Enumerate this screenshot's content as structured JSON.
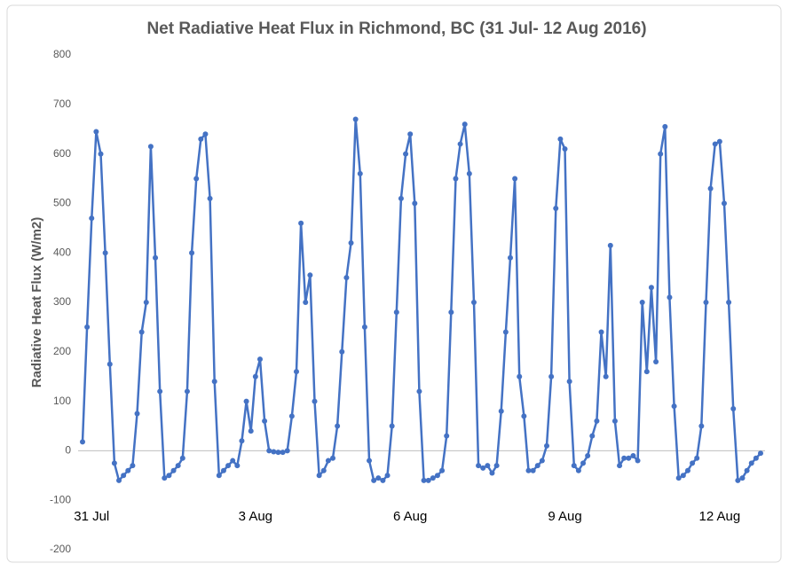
{
  "chart_data": {
    "type": "line",
    "title": "Net Radiative Heat Flux in Richmond, BC (31 Jul- 12 Aug 2016)",
    "ylabel": "Radiative Heat Flux (W/m2)",
    "color": "#4472c4",
    "ylim": [
      -200,
      800
    ],
    "yticks": [
      -200,
      -100,
      0,
      100,
      200,
      300,
      400,
      500,
      600,
      700,
      800
    ],
    "categories": [
      null,
      null,
      "31 Jul",
      null,
      null,
      null,
      null,
      null,
      null,
      null,
      null,
      null,
      null,
      null,
      null,
      null,
      null,
      null,
      null,
      null,
      null,
      null,
      null,
      null,
      null,
      null,
      null,
      null,
      null,
      null,
      null,
      null,
      null,
      null,
      null,
      null,
      null,
      null,
      "3 Aug",
      null,
      null,
      null,
      null,
      null,
      null,
      null,
      null,
      null,
      null,
      null,
      null,
      null,
      null,
      null,
      null,
      null,
      null,
      null,
      null,
      null,
      null,
      null,
      null,
      null,
      null,
      null,
      null,
      null,
      null,
      null,
      null,
      null,
      "6 Aug",
      null,
      null,
      null,
      null,
      null,
      null,
      null,
      null,
      null,
      null,
      null,
      null,
      null,
      null,
      null,
      null,
      null,
      null,
      null,
      null,
      null,
      null,
      null,
      null,
      null,
      null,
      null,
      null,
      null,
      null,
      null,
      null,
      null,
      "9 Aug",
      null,
      null,
      null,
      null,
      null,
      null,
      null,
      null,
      null,
      null,
      null,
      null,
      null,
      null,
      null,
      null,
      null,
      null,
      null,
      null,
      null,
      null,
      null,
      null,
      null,
      null,
      null,
      null,
      null,
      null,
      null,
      null,
      null,
      "12 Aug",
      null,
      null,
      null,
      null,
      null,
      null,
      null,
      null,
      null
    ],
    "values": [
      18,
      250,
      470,
      645,
      600,
      400,
      175,
      -25,
      -60,
      -50,
      -40,
      -30,
      75,
      240,
      300,
      615,
      390,
      120,
      -55,
      -50,
      -40,
      -30,
      -15,
      120,
      400,
      550,
      630,
      640,
      510,
      140,
      -50,
      -40,
      -30,
      -20,
      -30,
      20,
      100,
      40,
      150,
      185,
      60,
      0,
      -2,
      -3,
      -3,
      0,
      70,
      160,
      460,
      300,
      355,
      100,
      -50,
      -40,
      -20,
      -15,
      50,
      200,
      350,
      420,
      670,
      560,
      250,
      -20,
      -60,
      -55,
      -60,
      -50,
      50,
      280,
      510,
      600,
      640,
      500,
      120,
      -60,
      -60,
      -55,
      -50,
      -40,
      30,
      280,
      550,
      620,
      660,
      560,
      300,
      -30,
      -35,
      -30,
      -45,
      -30,
      80,
      240,
      390,
      550,
      150,
      70,
      -40,
      -40,
      -30,
      -20,
      10,
      150,
      490,
      630,
      610,
      140,
      -30,
      -40,
      -25,
      -10,
      30,
      60,
      240,
      150,
      415,
      60,
      -30,
      -15,
      -15,
      -10,
      -20,
      300,
      160,
      330,
      180,
      600,
      655,
      310,
      90,
      -55,
      -50,
      -40,
      -25,
      -15,
      50,
      300,
      530,
      620,
      625,
      500,
      300,
      85,
      -60,
      -55,
      -40,
      -25,
      -15,
      -5
    ]
  }
}
